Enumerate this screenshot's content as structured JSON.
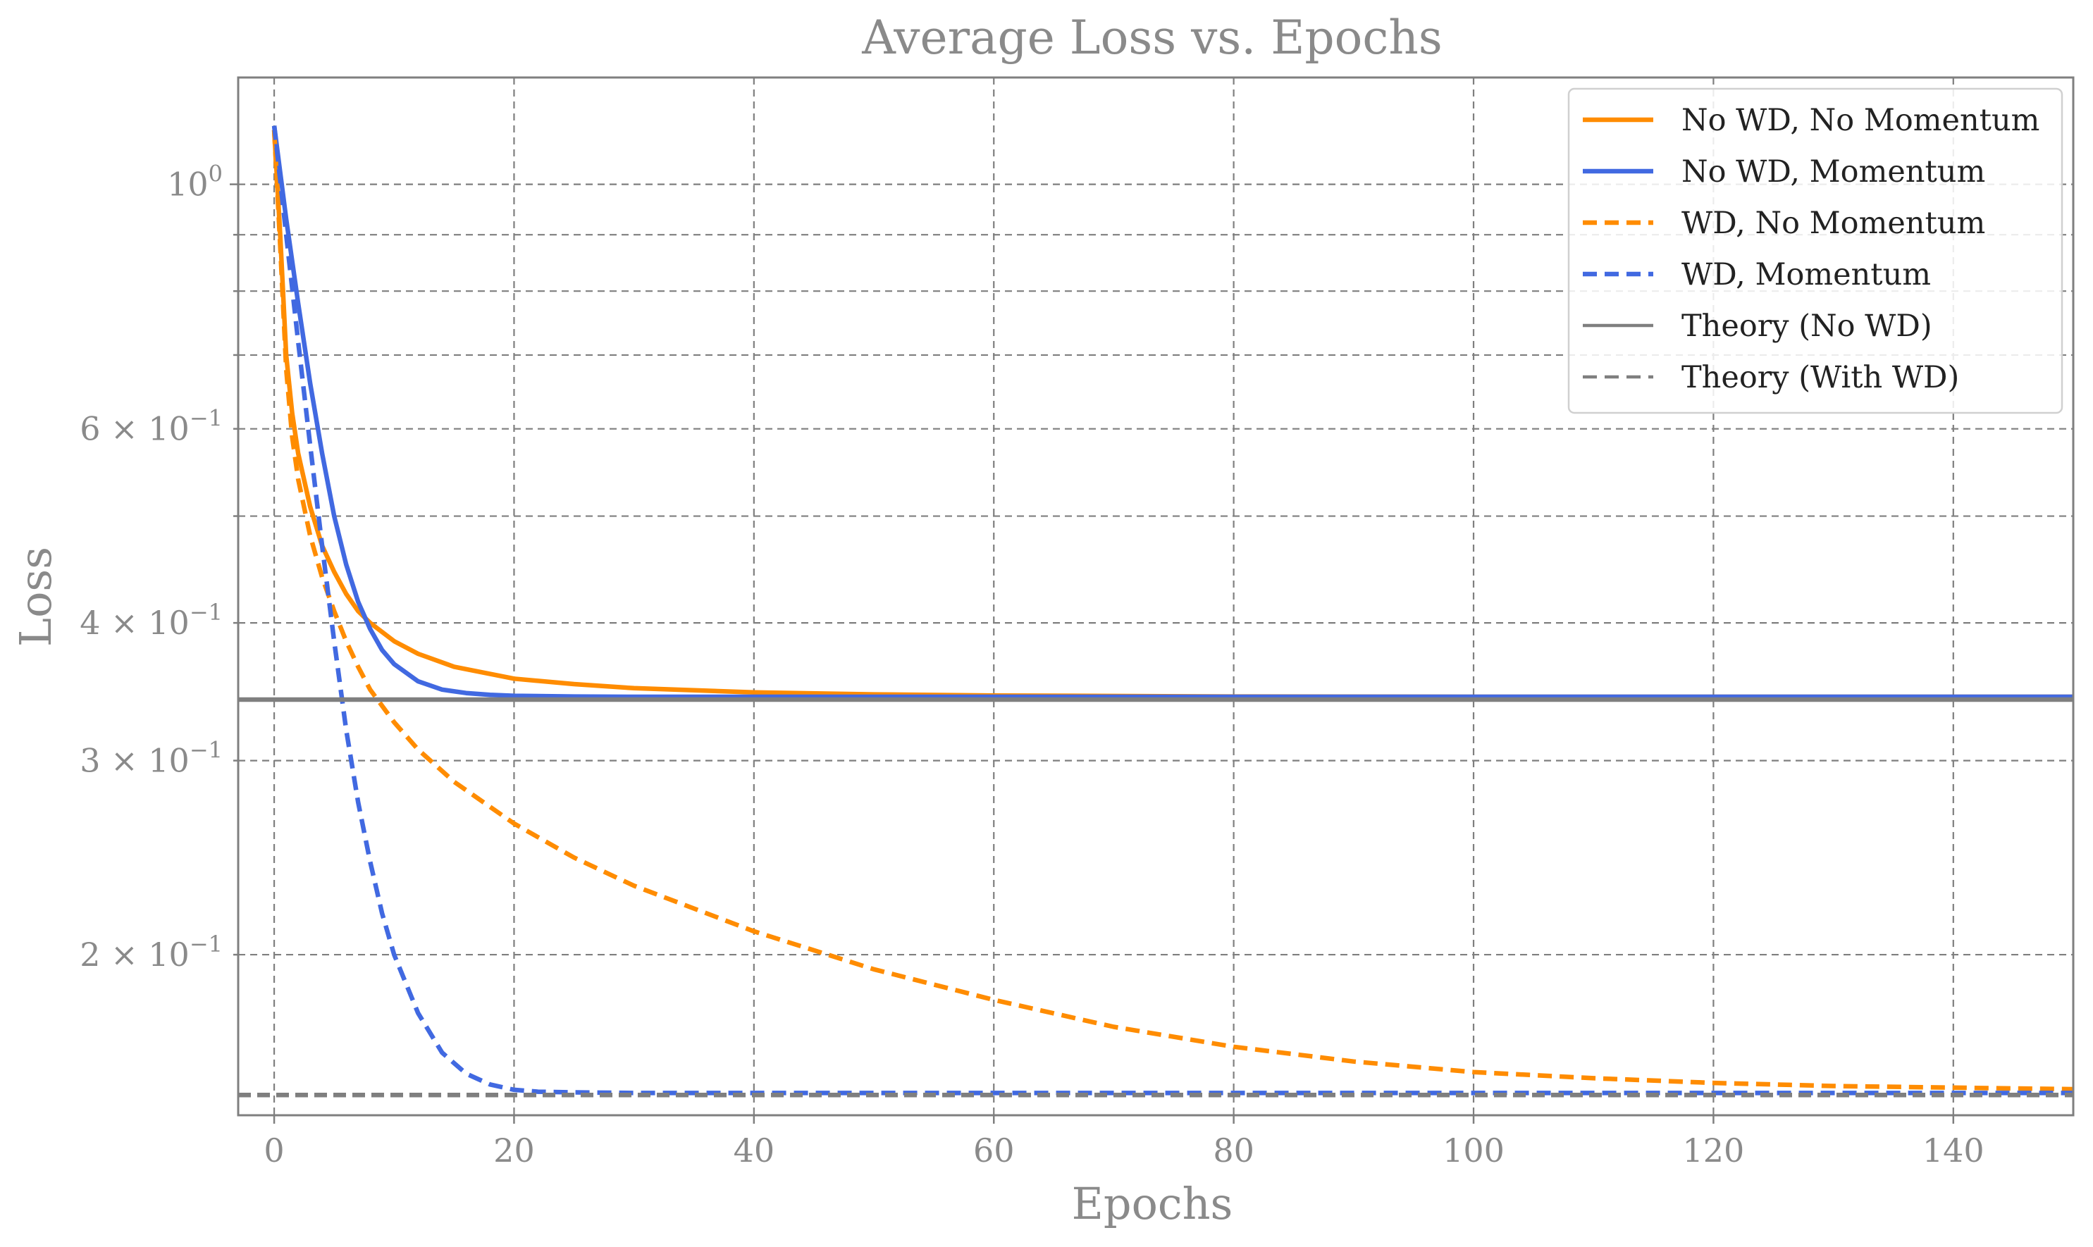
{
  "chart_data": {
    "type": "line",
    "title": "Average Loss vs. Epochs",
    "xlabel": "Epochs",
    "ylabel": "Loss",
    "xlim": [
      -3,
      150
    ],
    "ylim": [
      0.143,
      1.25
    ],
    "yscale": "log",
    "grid": true,
    "legend_position": "top-right",
    "x_ticks": [
      0,
      20,
      40,
      60,
      80,
      100,
      120,
      140
    ],
    "x_tick_labels": [
      "0",
      "20",
      "40",
      "60",
      "80",
      "100",
      "120",
      "140"
    ],
    "y_major_ticks": [
      1.0
    ],
    "y_major_tick_labels": [
      {
        "base": "10",
        "exp": "0"
      }
    ],
    "y_minor_ticks": [
      0.2,
      0.3,
      0.4,
      0.5,
      0.6,
      0.7,
      0.8,
      0.9
    ],
    "y_minor_tick_labels": [
      {
        "value": 0.6,
        "mantissa": "6",
        "times": "×",
        "base": "10",
        "exp": "−1"
      },
      {
        "value": 0.4,
        "mantissa": "4",
        "times": "×",
        "base": "10",
        "exp": "−1"
      },
      {
        "value": 0.3,
        "mantissa": "3",
        "times": "×",
        "base": "10",
        "exp": "−1"
      },
      {
        "value": 0.2,
        "mantissa": "2",
        "times": "×",
        "base": "10",
        "exp": "−1"
      }
    ],
    "series": [
      {
        "name": "No WD, No Momentum",
        "color": "#ff8c00",
        "dash": "solid",
        "x": [
          0,
          0.5,
          1,
          1.5,
          2,
          3,
          4,
          5,
          6,
          7,
          8,
          10,
          12,
          15,
          20,
          25,
          30,
          40,
          50,
          60,
          80,
          100,
          150
        ],
        "y": [
          1.12,
          0.9,
          0.7,
          0.62,
          0.57,
          0.51,
          0.47,
          0.445,
          0.425,
          0.41,
          0.4,
          0.385,
          0.375,
          0.365,
          0.356,
          0.352,
          0.349,
          0.346,
          0.3445,
          0.3437,
          0.343,
          0.3428,
          0.3428
        ]
      },
      {
        "name": "No WD, Momentum",
        "color": "#4169e1",
        "dash": "solid",
        "x": [
          0,
          1,
          2,
          3,
          4,
          5,
          6,
          7,
          8,
          9,
          10,
          12,
          14,
          16,
          18,
          20,
          25,
          30,
          150
        ],
        "y": [
          1.13,
          0.93,
          0.78,
          0.66,
          0.57,
          0.5,
          0.452,
          0.418,
          0.395,
          0.378,
          0.367,
          0.354,
          0.348,
          0.3455,
          0.3442,
          0.3435,
          0.343,
          0.3428,
          0.3428
        ]
      },
      {
        "name": "WD, No Momentum",
        "color": "#ff8c00",
        "dash": "dashed",
        "x": [
          0,
          0.5,
          1,
          1.5,
          2,
          3,
          4,
          5,
          6,
          7,
          8,
          10,
          12,
          15,
          20,
          25,
          30,
          40,
          50,
          60,
          70,
          80,
          90,
          100,
          110,
          120,
          130,
          140,
          150
        ],
        "y": [
          1.12,
          0.88,
          0.68,
          0.59,
          0.54,
          0.48,
          0.44,
          0.41,
          0.385,
          0.365,
          0.348,
          0.325,
          0.307,
          0.287,
          0.263,
          0.245,
          0.231,
          0.21,
          0.194,
          0.182,
          0.172,
          0.165,
          0.16,
          0.1565,
          0.1545,
          0.153,
          0.152,
          0.1515,
          0.151
        ]
      },
      {
        "name": "WD, Momentum",
        "color": "#4169e1",
        "dash": "dashed",
        "x": [
          0,
          1,
          2,
          3,
          4,
          5,
          6,
          7,
          8,
          9,
          10,
          12,
          14,
          16,
          18,
          20,
          22,
          25,
          30,
          150
        ],
        "y": [
          1.13,
          0.9,
          0.72,
          0.58,
          0.47,
          0.385,
          0.32,
          0.275,
          0.243,
          0.218,
          0.2,
          0.177,
          0.163,
          0.156,
          0.1525,
          0.1508,
          0.1502,
          0.15,
          0.1498,
          0.1498
        ]
      },
      {
        "name": "Theory (No WD)",
        "color": "#7f7f7f",
        "dash": "solid",
        "x": [
          -3,
          150
        ],
        "y": [
          0.3408,
          0.3408
        ]
      },
      {
        "name": "Theory (With WD)",
        "color": "#7f7f7f",
        "dash": "dashed",
        "x": [
          -3,
          150
        ],
        "y": [
          0.1492,
          0.1492
        ]
      }
    ]
  }
}
